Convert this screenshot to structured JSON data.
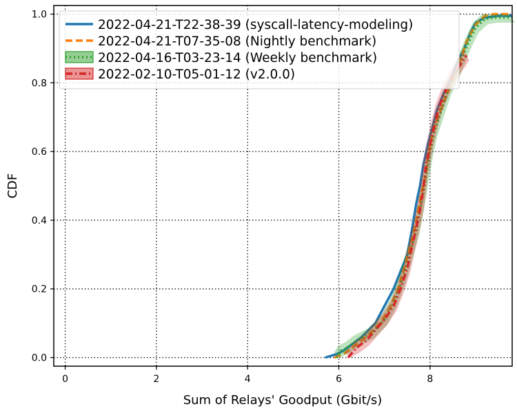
{
  "chart_data": {
    "type": "line",
    "xlabel": "Sum of Relays' Goodput (Gbit/s)",
    "ylabel": "CDF",
    "xlim": [
      -0.25,
      9.8
    ],
    "ylim": [
      -0.025,
      1.025
    ],
    "xticks": [
      0,
      2,
      4,
      6,
      8
    ],
    "yticks": [
      0.0,
      0.2,
      0.4,
      0.6,
      0.8,
      1.0
    ],
    "xtick_labels": [
      "0",
      "2",
      "4",
      "6",
      "8"
    ],
    "ytick_labels": [
      "0.0",
      "0.2",
      "0.4",
      "0.6",
      "0.8",
      "1.0"
    ],
    "grid": true,
    "legend_position": "top-left",
    "series": [
      {
        "name": "2022-04-21-T22-38-39 (syscall-latency-modeling)",
        "color": "#1f77b4",
        "style": "solid",
        "x": [
          5.7,
          5.95,
          6.1,
          6.3,
          6.5,
          6.8,
          7.0,
          7.2,
          7.35,
          7.5,
          7.6,
          7.7,
          7.78,
          7.85,
          7.95,
          8.05,
          8.15,
          8.3,
          8.45,
          8.6,
          8.75,
          8.9,
          9.0,
          9.2,
          9.5,
          9.8
        ],
        "y": [
          0.0,
          0.01,
          0.02,
          0.04,
          0.06,
          0.1,
          0.15,
          0.2,
          0.25,
          0.3,
          0.37,
          0.45,
          0.5,
          0.56,
          0.62,
          0.67,
          0.72,
          0.77,
          0.81,
          0.86,
          0.9,
          0.95,
          0.975,
          0.99,
          0.995,
          0.995
        ]
      },
      {
        "name": "2022-04-21-T07-35-08 (Nightly benchmark)",
        "color": "#ff7f0e",
        "style": "dashed",
        "x": [
          5.9,
          6.1,
          6.3,
          6.6,
          6.9,
          7.1,
          7.3,
          7.45,
          7.6,
          7.7,
          7.8,
          7.9,
          7.95,
          8.05,
          8.2,
          8.35,
          8.5,
          8.65,
          8.8,
          9.0,
          9.2,
          9.4,
          9.8
        ],
        "y": [
          0.0,
          0.01,
          0.03,
          0.06,
          0.1,
          0.14,
          0.2,
          0.27,
          0.34,
          0.4,
          0.47,
          0.53,
          0.58,
          0.65,
          0.71,
          0.76,
          0.81,
          0.86,
          0.92,
          0.97,
          0.995,
          1.0,
          1.0
        ]
      },
      {
        "name": "2022-04-16-T03-23-14 (Weekly benchmark)",
        "color": "#2ca02c",
        "style": "dotted",
        "x": [
          5.95,
          6.05,
          6.2,
          6.4,
          6.7,
          7.0,
          7.2,
          7.4,
          7.55,
          7.7,
          7.8,
          7.9,
          8.0,
          8.1,
          8.25,
          8.4,
          8.55,
          8.7,
          8.85,
          9.0,
          9.2,
          9.4,
          9.8
        ],
        "y": [
          0.0,
          0.02,
          0.03,
          0.05,
          0.07,
          0.11,
          0.16,
          0.23,
          0.3,
          0.37,
          0.44,
          0.52,
          0.6,
          0.66,
          0.72,
          0.78,
          0.82,
          0.87,
          0.92,
          0.96,
          0.985,
          0.99,
          0.99
        ]
      },
      {
        "name": "2022-02-10-T05-01-12 (v2.0.0)",
        "color": "#d62728",
        "style": "dashdot",
        "x": [
          6.2,
          6.4,
          6.6,
          6.8,
          7.0,
          7.2,
          7.35,
          7.5,
          7.6,
          7.7,
          7.78,
          7.85,
          7.9,
          8.0,
          8.1,
          8.2,
          8.35,
          8.5,
          8.6,
          8.7,
          8.8
        ],
        "y": [
          0.0,
          0.03,
          0.05,
          0.08,
          0.11,
          0.15,
          0.2,
          0.26,
          0.32,
          0.38,
          0.43,
          0.49,
          0.55,
          0.62,
          0.68,
          0.73,
          0.78,
          0.82,
          0.84,
          0.86,
          0.88
        ]
      }
    ]
  }
}
